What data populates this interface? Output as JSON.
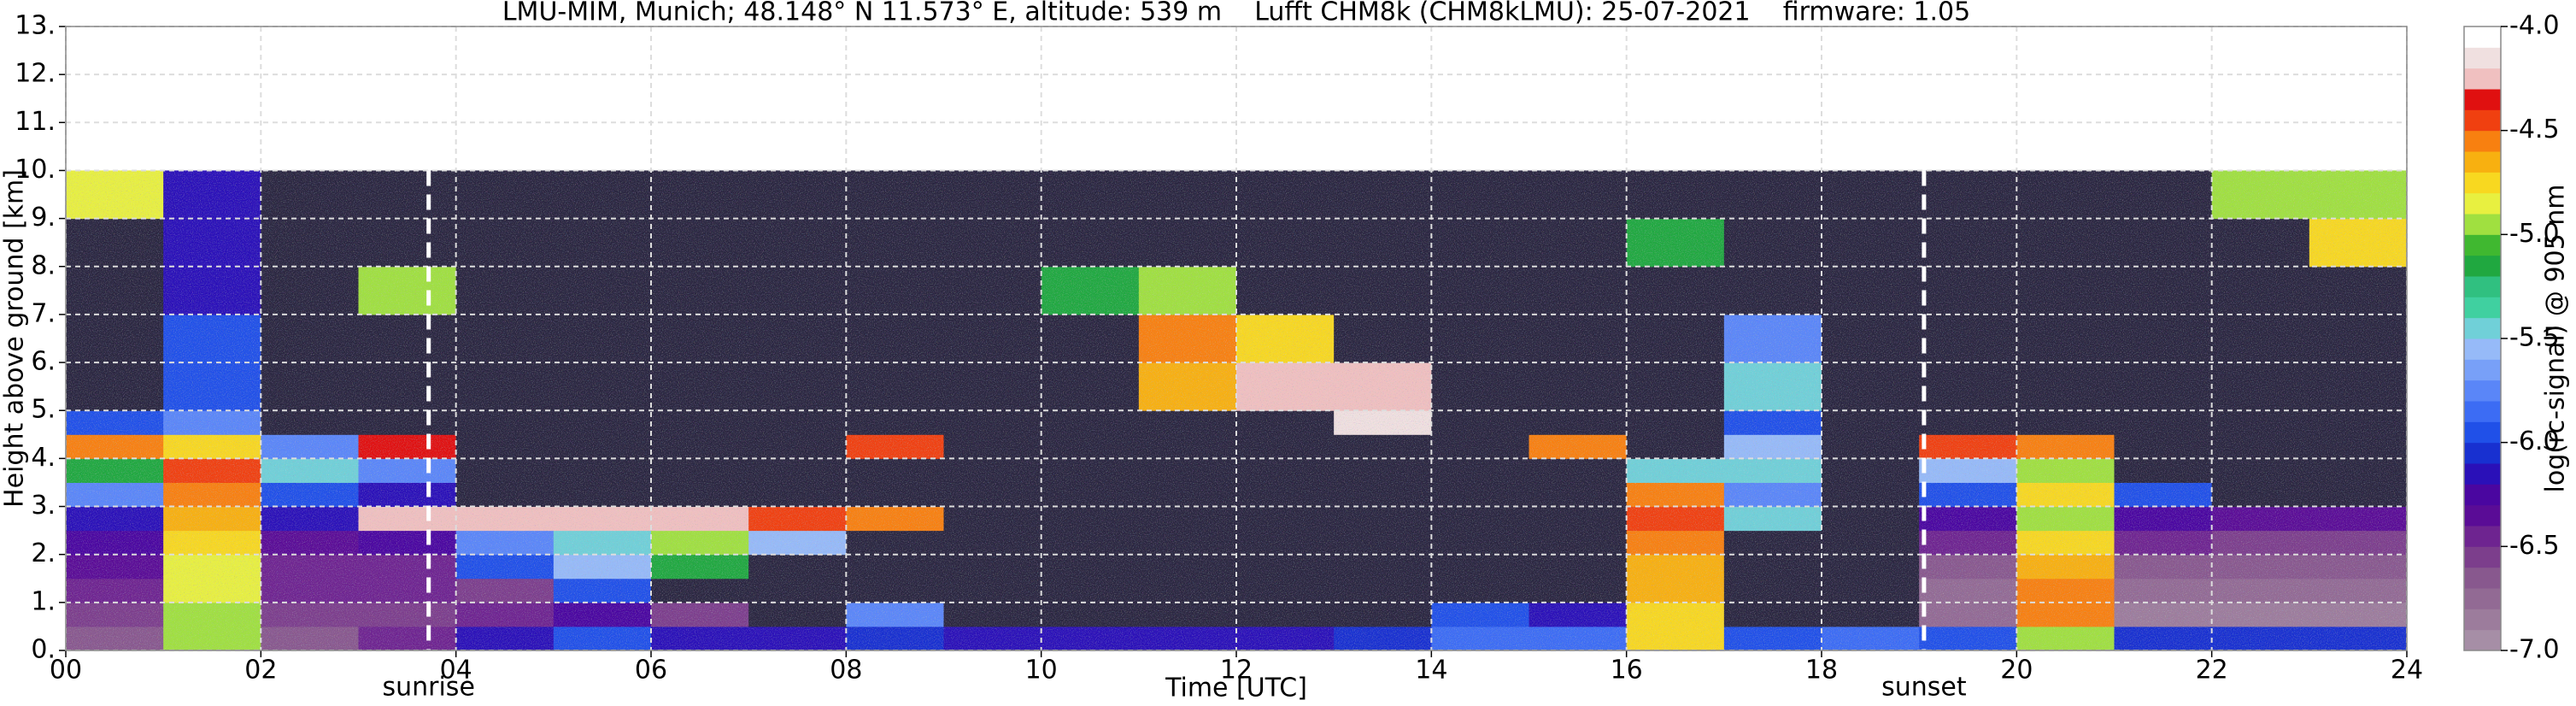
{
  "chart_data": {
    "type": "heatmap",
    "title": "LMU-MIM, Munich; 48.148° N 11.573° E, altitude: 539 m    Lufft CHM8k (CHM8kLMU): 25-07-2021    firmware: 1.05",
    "x_label": "Time [UTC]",
    "y_label": "Height above ground [km]",
    "colorbar_label": "log(rc-signal) @ 905 nm",
    "xlim": [
      0,
      24
    ],
    "ylim": [
      0,
      13
    ],
    "clim": [
      -7.0,
      -4.0
    ],
    "xticks": [
      {
        "value": 0,
        "label": "00"
      },
      {
        "value": 2,
        "label": "02"
      },
      {
        "value": 4,
        "label": "04"
      },
      {
        "value": 6,
        "label": "06"
      },
      {
        "value": 8,
        "label": "08"
      },
      10,
      12,
      14,
      16,
      18,
      20,
      22,
      24
    ],
    "yticks": [
      {
        "value": 0,
        "label": "0."
      },
      {
        "value": 1,
        "label": "1."
      },
      {
        "value": 2,
        "label": "2."
      },
      {
        "value": 3,
        "label": "3."
      },
      {
        "value": 4,
        "label": "4."
      },
      {
        "value": 5,
        "label": "5."
      },
      {
        "value": 6,
        "label": "6."
      },
      {
        "value": 7,
        "label": "7."
      },
      {
        "value": 8,
        "label": "8."
      },
      {
        "value": 9,
        "label": "9."
      },
      {
        "value": 10,
        "label": "10."
      },
      {
        "value": 11,
        "label": "11."
      },
      {
        "value": 12,
        "label": "12."
      },
      {
        "value": 13,
        "label": "13."
      }
    ],
    "cticks": [
      {
        "value": -4.0,
        "label": "-4.0"
      },
      -4.5,
      {
        "value": -5.0,
        "label": "-5.0"
      },
      -5.5,
      {
        "value": -6.0,
        "label": "-6.0"
      },
      -6.5,
      {
        "value": -7.0,
        "label": "-7.0"
      }
    ],
    "grid": true,
    "grid_color": "#dddddd",
    "colorscale": [
      "#a68ea6",
      "#9c7c9c",
      "#926a94",
      "#88588e",
      "#7c3e8c",
      "#6e2490",
      "#5a0c96",
      "#4a06a0",
      "#2a10b8",
      "#1830d0",
      "#2050e8",
      "#3c6cf4",
      "#5a86f8",
      "#78a0f8",
      "#96baf8",
      "#70d0d8",
      "#40d0a0",
      "#30c080",
      "#20a840",
      "#40b830",
      "#a0e040",
      "#e8f040",
      "#f8d820",
      "#f8b010",
      "#f88010",
      "#f04010",
      "#e01010",
      "#f0c0c0",
      "#f0e0e0",
      "#ffffff"
    ],
    "under_color": "#2a2640",
    "x_bins": [
      0,
      1,
      2,
      3,
      4,
      5,
      6,
      7,
      8,
      9,
      10,
      11,
      12,
      13,
      14,
      15,
      16,
      17,
      18,
      19,
      20,
      21,
      22,
      23,
      24
    ],
    "y_bins": [
      0,
      0.5,
      1,
      1.5,
      2,
      2.5,
      3,
      3.5,
      4,
      4.5,
      5,
      6,
      7,
      8,
      9,
      10
    ],
    "z": [
      [
        -6.7,
        -5.0,
        -6.7,
        -6.5,
        -6.2,
        -6.0,
        -6.2,
        -6.2,
        -6.1,
        -6.2,
        -6.2,
        -6.2,
        -6.2,
        -6.1,
        -5.9,
        -5.9,
        -4.8,
        -6.0,
        -5.9,
        -6.0,
        -5.0,
        -6.1,
        -6.1,
        -6.1
      ],
      [
        -6.6,
        -5.0,
        -6.6,
        -6.6,
        -6.5,
        -6.3,
        -6.6,
        -7.5,
        -5.8,
        -7.5,
        -7.5,
        -7.5,
        -7.5,
        -7.5,
        -6.0,
        -6.2,
        -4.8,
        -7.5,
        -7.5,
        -6.8,
        -4.6,
        -6.9,
        -6.9,
        -6.9
      ],
      [
        -6.5,
        -4.9,
        -6.5,
        -6.5,
        -6.6,
        -6.0,
        -7.5,
        -7.5,
        -7.5,
        -7.5,
        -7.5,
        -7.5,
        -7.5,
        -7.5,
        -7.5,
        -7.5,
        -4.7,
        -7.5,
        -7.5,
        -6.8,
        -4.6,
        -6.8,
        -6.8,
        -6.8
      ],
      [
        -6.4,
        -4.9,
        -6.5,
        -6.5,
        -6.0,
        -5.6,
        -5.2,
        -7.5,
        -7.5,
        -7.5,
        -7.5,
        -7.5,
        -7.5,
        -7.5,
        -7.5,
        -7.5,
        -4.7,
        -7.5,
        -7.5,
        -6.7,
        -4.7,
        -6.7,
        -6.7,
        -6.7
      ],
      [
        -6.3,
        -4.8,
        -6.4,
        -6.3,
        -5.8,
        -5.5,
        -5.0,
        -5.6,
        -7.5,
        -7.5,
        -7.5,
        -7.5,
        -7.5,
        -7.5,
        -7.5,
        -7.5,
        -4.6,
        -7.5,
        -7.5,
        -6.5,
        -4.8,
        -6.5,
        -6.6,
        -6.6
      ],
      [
        -6.2,
        -4.7,
        -6.2,
        -4.3,
        -4.3,
        -4.3,
        -4.3,
        -4.5,
        -4.6,
        -7.5,
        -7.5,
        -7.5,
        -7.5,
        -7.5,
        -7.5,
        -7.5,
        -4.5,
        -5.5,
        -7.5,
        -6.3,
        -5.0,
        -6.3,
        -6.4,
        -6.4
      ],
      [
        -5.8,
        -4.6,
        -6.0,
        -6.2,
        -7.5,
        -7.5,
        -7.5,
        -7.5,
        -7.5,
        -7.5,
        -7.5,
        -7.5,
        -7.5,
        -7.5,
        -7.5,
        -7.5,
        -4.6,
        -5.8,
        -7.5,
        -6.0,
        -4.8,
        -6.0,
        -7.5,
        -7.5
      ],
      [
        -5.2,
        -4.5,
        -5.5,
        -5.8,
        -7.5,
        -7.5,
        -7.5,
        -7.5,
        -7.5,
        -7.5,
        -7.5,
        -7.5,
        -7.5,
        -7.5,
        -7.5,
        -7.5,
        -5.5,
        -5.5,
        -7.5,
        -5.6,
        -5.0,
        -7.5,
        -7.5,
        -7.5
      ],
      [
        -4.6,
        -4.8,
        -5.8,
        -4.4,
        -7.5,
        -7.5,
        -7.5,
        -7.5,
        -4.5,
        -7.5,
        -7.5,
        -7.5,
        -7.5,
        -7.5,
        -7.5,
        -4.6,
        -7.5,
        -5.6,
        -7.5,
        -4.5,
        -4.6,
        -7.5,
        -7.5,
        -7.5
      ],
      [
        -6.0,
        -5.8,
        -7.5,
        -7.5,
        -7.5,
        -7.5,
        -7.5,
        -7.5,
        -7.5,
        -7.5,
        -7.5,
        -7.5,
        -7.5,
        -4.2,
        -7.5,
        -7.5,
        -7.5,
        -6.0,
        -7.5,
        -7.5,
        -7.5,
        -7.5,
        -7.5,
        -7.5
      ],
      [
        -7.5,
        -6.0,
        -7.5,
        -7.5,
        -7.5,
        -7.5,
        -7.5,
        -7.5,
        -7.5,
        -7.5,
        -7.5,
        -4.7,
        -4.3,
        -4.3,
        -7.5,
        -7.5,
        -7.5,
        -5.5,
        -7.5,
        -7.5,
        -7.5,
        -7.5,
        -7.5,
        -7.5
      ],
      [
        -7.5,
        -6.0,
        -7.5,
        -7.5,
        -7.5,
        -7.5,
        -7.5,
        -7.5,
        -7.5,
        -7.5,
        -7.5,
        -4.6,
        -4.8,
        -7.5,
        -7.5,
        -7.5,
        -7.5,
        -5.8,
        -7.5,
        -7.5,
        -7.5,
        -7.5,
        -7.5,
        -7.5
      ],
      [
        -7.5,
        -6.2,
        -7.5,
        -5.0,
        -7.5,
        -7.5,
        -7.5,
        -7.5,
        -7.5,
        -7.5,
        -5.2,
        -5.0,
        -7.5,
        -7.5,
        -7.5,
        -7.5,
        -7.5,
        -7.5,
        -7.5,
        -7.5,
        -7.5,
        -7.5,
        -7.5,
        -7.5
      ],
      [
        -7.5,
        -6.2,
        -7.5,
        -7.5,
        -7.5,
        -7.5,
        -7.5,
        -7.5,
        -7.5,
        -7.5,
        -7.5,
        -7.5,
        -7.5,
        -7.5,
        -7.5,
        -7.5,
        -5.2,
        -7.5,
        -7.5,
        -7.5,
        -7.5,
        -7.5,
        -7.5,
        -4.8
      ],
      [
        -4.9,
        -6.2,
        -7.5,
        -7.5,
        -7.5,
        -7.5,
        -7.5,
        -7.5,
        -7.5,
        -7.5,
        -7.5,
        -7.5,
        -7.5,
        -7.5,
        -7.5,
        -7.5,
        -7.5,
        -7.5,
        -7.5,
        -7.5,
        -7.5,
        -7.5,
        -5.0,
        -5.0
      ]
    ],
    "annotations": [
      {
        "text": "sunrise",
        "x": 3.72
      },
      {
        "text": "sunset",
        "x": 19.05
      }
    ]
  }
}
